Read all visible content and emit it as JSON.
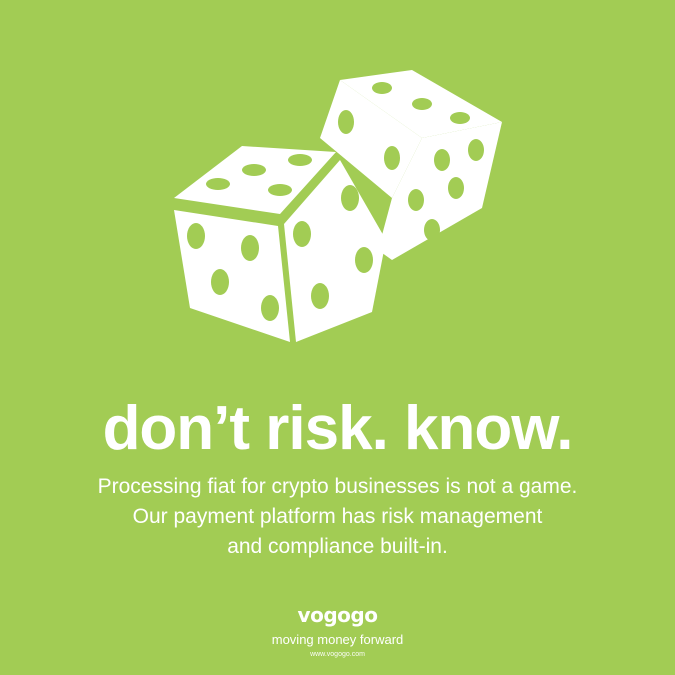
{
  "colors": {
    "background": "#a2cc54",
    "foreground": "#ffffff"
  },
  "illustration": {
    "icon": "dice-icon"
  },
  "headline": "don’t risk. know.",
  "body": [
    "Processing fiat for crypto businesses is not a game.",
    "Our payment platform has risk management",
    "and compliance built-in."
  ],
  "brand": {
    "logo": "vogogo",
    "tagline": "moving money forward",
    "url": "www.vogogo.com"
  }
}
